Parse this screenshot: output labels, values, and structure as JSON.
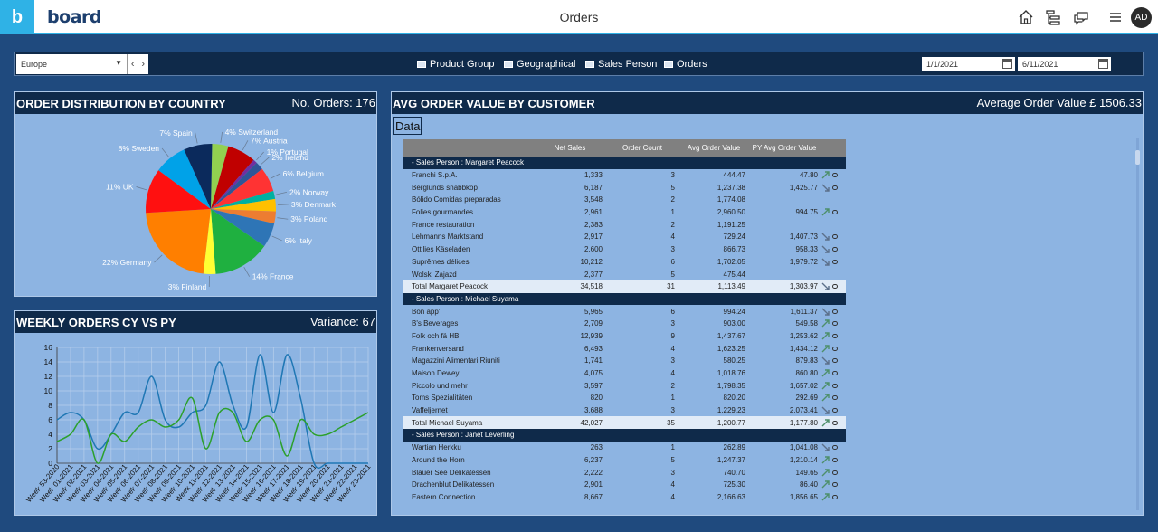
{
  "app": {
    "brand_initial": "b",
    "logo_text": "board",
    "page_title": "Orders",
    "user_initials": "AD"
  },
  "filters": {
    "country_value": "Europe",
    "tabs": [
      "Product Group",
      "Geographical",
      "Sales Person",
      "Orders"
    ],
    "date_from": "1/1/2021",
    "date_to": "6/11/2021"
  },
  "pie_panel": {
    "title": "ORDER DISTRIBUTION BY COUNTRY",
    "kpi": "No. Orders: 176",
    "chart_data": {
      "type": "pie",
      "slices": [
        {
          "label": "4% Switzerland",
          "value": 4,
          "color": "#92d050"
        },
        {
          "label": "7% Austria",
          "value": 7,
          "color": "#c00000"
        },
        {
          "label": "1% Portugal",
          "value": 1,
          "color": "#7030a0"
        },
        {
          "label": "2% Ireland",
          "value": 2,
          "color": "#2f5597"
        },
        {
          "label": "6% Belgium",
          "value": 6,
          "color": "#ff3333"
        },
        {
          "label": "2% Norway",
          "value": 2,
          "color": "#00b0a0"
        },
        {
          "label": "3% Denmark",
          "value": 3,
          "color": "#ffc000"
        },
        {
          "label": "3% Poland",
          "value": 3,
          "color": "#ed7d31"
        },
        {
          "label": "6% Italy",
          "value": 6,
          "color": "#2e75b6"
        },
        {
          "label": "14% France",
          "value": 14,
          "color": "#1fb040"
        },
        {
          "label": "3% Finland",
          "value": 3,
          "color": "#ffff33"
        },
        {
          "label": "22% Germany",
          "value": 22,
          "color": "#ff7f00"
        },
        {
          "label": "11% UK",
          "value": 11,
          "color": "#ff1010"
        },
        {
          "label": "8% Sweden",
          "value": 8,
          "color": "#00a2e8"
        },
        {
          "label": "7% Spain",
          "value": 7,
          "color": "#0b2a5c"
        }
      ]
    }
  },
  "line_panel": {
    "title": "WEEKLY ORDERS CY VS PY",
    "kpi": "Variance: 67",
    "chart_data": {
      "type": "line",
      "x": [
        "Week 53-2020",
        "Week 01-2021",
        "Week 02-2021",
        "Week 03-2021",
        "Week 04-2021",
        "Week 05-2021",
        "Week 06-2021",
        "Week 07-2021",
        "Week 08-2021",
        "Week 09-2021",
        "Week 10-2021",
        "Week 11-2021",
        "Week 12-2021",
        "Week 13-2021",
        "Week 14-2021",
        "Week 15-2021",
        "Week 16-2021",
        "Week 17-2021",
        "Week 18-2021",
        "Week 19-2021",
        "Week 20-2021",
        "Week 21-2021",
        "Week 22-2021",
        "Week 23-2021"
      ],
      "ylim": [
        0,
        16
      ],
      "yticks": [
        0,
        2,
        4,
        6,
        8,
        10,
        12,
        14,
        16
      ],
      "grid": true,
      "series": [
        {
          "color": "#1f77b4",
          "values": [
            6,
            7,
            6,
            2,
            4,
            7,
            7,
            12,
            6,
            5,
            7,
            8,
            14,
            8,
            5,
            15,
            7,
            15,
            9,
            0,
            0,
            0,
            0,
            0
          ]
        },
        {
          "color": "#2ca02c",
          "values": [
            3,
            4,
            6,
            0,
            4,
            3,
            5,
            6,
            5,
            6,
            9,
            2,
            7,
            7,
            3,
            6,
            6,
            1,
            6,
            4,
            4,
            5,
            6,
            7
          ]
        }
      ]
    }
  },
  "table_panel": {
    "title": "AVG ORDER VALUE BY CUSTOMER",
    "kpi": "Average Order Value £ 1506.33",
    "data_tab": "Data",
    "columns": [
      "",
      "Net Sales",
      "Order Count",
      "Avg Order Value",
      "PY Avg Order Value"
    ],
    "rows": [
      {
        "t": "g",
        "name": "-  Sales Person : Margaret Peacock"
      },
      {
        "name": "Franchi S.p.A.",
        "ns": "1,333",
        "oc": "3",
        "aov": "444.47",
        "py": "47.80",
        "tr": "up",
        "note": true
      },
      {
        "name": "Berglunds snabbköp",
        "ns": "6,187",
        "oc": "5",
        "aov": "1,237.38",
        "py": "1,425.77",
        "tr": "down",
        "note": true
      },
      {
        "name": "Bólido Comidas preparadas",
        "ns": "3,548",
        "oc": "2",
        "aov": "1,774.08",
        "py": "",
        "tr": "",
        "note": false
      },
      {
        "name": "Folies gourmandes",
        "ns": "2,961",
        "oc": "1",
        "aov": "2,960.50",
        "py": "994.75",
        "tr": "up",
        "note": true
      },
      {
        "name": "France restauration",
        "ns": "2,383",
        "oc": "2",
        "aov": "1,191.25",
        "py": "",
        "tr": "",
        "note": false
      },
      {
        "name": "Lehmanns Marktstand",
        "ns": "2,917",
        "oc": "4",
        "aov": "729.24",
        "py": "1,407.73",
        "tr": "down",
        "note": true
      },
      {
        "name": "Ottilies Käseladen",
        "ns": "2,600",
        "oc": "3",
        "aov": "866.73",
        "py": "958.33",
        "tr": "down",
        "note": true
      },
      {
        "name": "Suprêmes délices",
        "ns": "10,212",
        "oc": "6",
        "aov": "1,702.05",
        "py": "1,979.72",
        "tr": "down",
        "note": true
      },
      {
        "name": "Wolski  Zajazd",
        "ns": "2,377",
        "oc": "5",
        "aov": "475.44",
        "py": "",
        "tr": "",
        "note": false
      },
      {
        "t": "t",
        "name": "Total Margaret Peacock",
        "ns": "34,518",
        "oc": "31",
        "aov": "1,113.49",
        "py": "1,303.97",
        "tr": "down",
        "note": true
      },
      {
        "t": "g",
        "name": "-  Sales Person : Michael Suyama"
      },
      {
        "name": "Bon app'",
        "ns": "5,965",
        "oc": "6",
        "aov": "994.24",
        "py": "1,611.37",
        "tr": "down",
        "note": true
      },
      {
        "name": "B's Beverages",
        "ns": "2,709",
        "oc": "3",
        "aov": "903.00",
        "py": "549.58",
        "tr": "up",
        "note": true
      },
      {
        "name": "Folk och fä HB",
        "ns": "12,939",
        "oc": "9",
        "aov": "1,437.67",
        "py": "1,253.62",
        "tr": "up",
        "note": true
      },
      {
        "name": "Frankenversand",
        "ns": "6,493",
        "oc": "4",
        "aov": "1,623.25",
        "py": "1,434.12",
        "tr": "up",
        "note": true
      },
      {
        "name": "Magazzini Alimentari Riuniti",
        "ns": "1,741",
        "oc": "3",
        "aov": "580.25",
        "py": "879.83",
        "tr": "down",
        "note": true
      },
      {
        "name": "Maison Dewey",
        "ns": "4,075",
        "oc": "4",
        "aov": "1,018.76",
        "py": "860.80",
        "tr": "up",
        "note": true
      },
      {
        "name": "Piccolo und mehr",
        "ns": "3,597",
        "oc": "2",
        "aov": "1,798.35",
        "py": "1,657.02",
        "tr": "up",
        "note": true
      },
      {
        "name": "Toms Spezialitäten",
        "ns": "820",
        "oc": "1",
        "aov": "820.20",
        "py": "292.69",
        "tr": "up",
        "note": true
      },
      {
        "name": "Vaffeljernet",
        "ns": "3,688",
        "oc": "3",
        "aov": "1,229.23",
        "py": "2,073.41",
        "tr": "down",
        "note": true
      },
      {
        "t": "t",
        "name": "Total Michael Suyama",
        "ns": "42,027",
        "oc": "35",
        "aov": "1,200.77",
        "py": "1,177.80",
        "tr": "up",
        "note": true
      },
      {
        "t": "g",
        "name": "-  Sales Person : Janet Leverling"
      },
      {
        "name": "Wartian Herkku",
        "ns": "263",
        "oc": "1",
        "aov": "262.89",
        "py": "1,041.08",
        "tr": "down",
        "note": true
      },
      {
        "name": "Around the Horn",
        "ns": "6,237",
        "oc": "5",
        "aov": "1,247.37",
        "py": "1,210.14",
        "tr": "up",
        "note": true
      },
      {
        "name": "Blauer See Delikatessen",
        "ns": "2,222",
        "oc": "3",
        "aov": "740.70",
        "py": "149.65",
        "tr": "up",
        "note": true
      },
      {
        "name": "Drachenblut Delikatessen",
        "ns": "2,901",
        "oc": "4",
        "aov": "725.30",
        "py": "86.40",
        "tr": "up",
        "note": true
      },
      {
        "name": "Eastern Connection",
        "ns": "8,667",
        "oc": "4",
        "aov": "2,166.63",
        "py": "1,856.65",
        "tr": "up",
        "note": true
      }
    ]
  }
}
